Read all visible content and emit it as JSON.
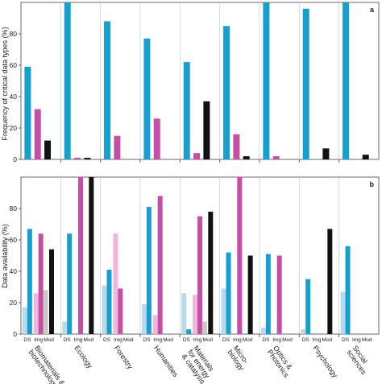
{
  "chart_data": [
    {
      "panel": "a",
      "type": "bar",
      "ylabel": "Frequency of critical data types (%)",
      "ylim": [
        0,
        100
      ],
      "yticks": [
        0,
        20,
        40,
        60,
        80
      ],
      "categories": [
        "Biomaterials & biotechnology",
        "Ecology",
        "Forestry",
        "Humanities",
        "Materials for energy & catalysis",
        "Micro-biology",
        "Optics & Photonics",
        "Psychology",
        "Social sciences"
      ],
      "series": [
        {
          "key": "ds",
          "color": "#16a0d0",
          "values": [
            59,
            100,
            88,
            77,
            62,
            85,
            100,
            96,
            100
          ]
        },
        {
          "key": "img",
          "color": "#c74ea7",
          "values": [
            32,
            1,
            15,
            26,
            4,
            16,
            2,
            0,
            0
          ]
        },
        {
          "key": "mod",
          "color": "#111111",
          "values": [
            12,
            1,
            0,
            0,
            37,
            2,
            0,
            7,
            3
          ]
        }
      ]
    },
    {
      "panel": "b",
      "type": "bar",
      "ylabel": "Data availability (%)",
      "ylim": [
        0,
        100
      ],
      "yticks": [
        0,
        20,
        40,
        60,
        80
      ],
      "categories": [
        "Biomaterials & biotechnology",
        "Ecology",
        "Forestry",
        "Humanities",
        "Materials for energy & catalysis",
        "Micro-biology",
        "Optics & Photonics",
        "Psychology",
        "Social sciences"
      ],
      "sublabels": [
        "DS",
        "Img",
        "Mod"
      ],
      "series": [
        {
          "key": "ds-light",
          "color": "#b7d9ec",
          "values": [
            17,
            8,
            31,
            19,
            26,
            29,
            4,
            3,
            27
          ]
        },
        {
          "key": "ds",
          "color": "#16a0d0",
          "values": [
            67,
            64,
            41,
            81,
            3,
            52,
            51,
            35,
            56
          ]
        },
        {
          "key": "img-light",
          "color": "#f2b6dc",
          "values": [
            26,
            0,
            64,
            12,
            25,
            0,
            0,
            0,
            0
          ]
        },
        {
          "key": "img",
          "color": "#c74ea7",
          "values": [
            64,
            100,
            29,
            88,
            75,
            100,
            50,
            0,
            0
          ]
        },
        {
          "key": "mod-light",
          "color": "#c8c8c8",
          "values": [
            28,
            0,
            0,
            0,
            8,
            0,
            0,
            0,
            0
          ]
        },
        {
          "key": "mod",
          "color": "#111111",
          "values": [
            54,
            100,
            0,
            0,
            78,
            50,
            0,
            67,
            0
          ]
        }
      ]
    }
  ],
  "x_labels": [
    [
      "Biomaterials &",
      "biotechnology"
    ],
    [
      "Ecology"
    ],
    [
      "Forestry"
    ],
    [
      "Humanities"
    ],
    [
      "Materials",
      "for energy",
      "& catalysis"
    ],
    [
      "Micro-",
      "biology"
    ],
    [
      "Optics &",
      "Photonics"
    ],
    [
      "Psychology"
    ],
    [
      "Social",
      "sciences"
    ]
  ]
}
